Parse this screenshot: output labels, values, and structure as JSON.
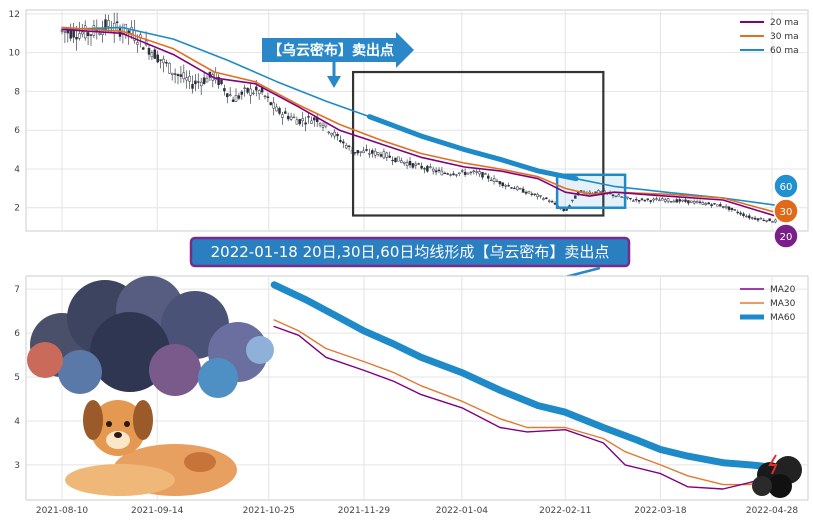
{
  "chart_data": [
    {
      "type": "line",
      "subtype": "candlestick_with_moving_averages",
      "legend_position": "top-right",
      "grid": true,
      "ylim": [
        0.8,
        12.2
      ],
      "yticks": [
        2,
        4,
        6,
        8,
        10,
        12
      ],
      "price_path": [
        {
          "x": "2021-08-10",
          "y": 11.1
        },
        {
          "x": "2021-08-20",
          "y": 11.0
        },
        {
          "x": "2021-08-27",
          "y": 11.4
        },
        {
          "x": "2021-09-05",
          "y": 11.0
        },
        {
          "x": "2021-09-12",
          "y": 10.1
        },
        {
          "x": "2021-09-20",
          "y": 9.0
        },
        {
          "x": "2021-09-27",
          "y": 8.4
        },
        {
          "x": "2021-10-05",
          "y": 8.8
        },
        {
          "x": "2021-10-12",
          "y": 7.6
        },
        {
          "x": "2021-10-17",
          "y": 8.0
        },
        {
          "x": "2021-10-22",
          "y": 8.0
        },
        {
          "x": "2021-10-28",
          "y": 7.0
        },
        {
          "x": "2021-11-05",
          "y": 6.5
        },
        {
          "x": "2021-11-12",
          "y": 6.6
        },
        {
          "x": "2021-11-18",
          "y": 5.8
        },
        {
          "x": "2021-11-25",
          "y": 4.9
        },
        {
          "x": "2021-12-05",
          "y": 4.8
        },
        {
          "x": "2021-12-15",
          "y": 4.3
        },
        {
          "x": "2021-12-28",
          "y": 3.8
        },
        {
          "x": "2022-01-10",
          "y": 3.8
        },
        {
          "x": "2022-01-18",
          "y": 3.3
        },
        {
          "x": "2022-01-28",
          "y": 2.8
        },
        {
          "x": "2022-02-05",
          "y": 2.4
        },
        {
          "x": "2022-02-11",
          "y": 1.8
        },
        {
          "x": "2022-02-16",
          "y": 2.8
        },
        {
          "x": "2022-02-25",
          "y": 2.8
        },
        {
          "x": "2022-03-08",
          "y": 2.4
        },
        {
          "x": "2022-03-20",
          "y": 2.4
        },
        {
          "x": "2022-03-30",
          "y": 2.3
        },
        {
          "x": "2022-04-10",
          "y": 2.1
        },
        {
          "x": "2022-04-20",
          "y": 1.5
        },
        {
          "x": "2022-04-30",
          "y": 1.3
        }
      ],
      "series": [
        {
          "name": "20 ma",
          "color": "#800080",
          "points": [
            {
              "x": "2021-08-10",
              "y": 11.2
            },
            {
              "x": "2021-09-01",
              "y": 11.0
            },
            {
              "x": "2021-09-20",
              "y": 9.9
            },
            {
              "x": "2021-10-05",
              "y": 8.7
            },
            {
              "x": "2021-10-20",
              "y": 8.4
            },
            {
              "x": "2021-11-05",
              "y": 7.2
            },
            {
              "x": "2021-11-20",
              "y": 6.0
            },
            {
              "x": "2021-12-05",
              "y": 5.3
            },
            {
              "x": "2021-12-20",
              "y": 4.6
            },
            {
              "x": "2022-01-05",
              "y": 4.1
            },
            {
              "x": "2022-01-18",
              "y": 3.9
            },
            {
              "x": "2022-02-01",
              "y": 3.5
            },
            {
              "x": "2022-02-11",
              "y": 2.8
            },
            {
              "x": "2022-02-20",
              "y": 2.6
            },
            {
              "x": "2022-03-01",
              "y": 2.8
            },
            {
              "x": "2022-03-20",
              "y": 2.6
            },
            {
              "x": "2022-04-10",
              "y": 2.4
            },
            {
              "x": "2022-05-01",
              "y": 1.5
            }
          ]
        },
        {
          "name": "30 ma",
          "color": "#e07020",
          "points": [
            {
              "x": "2021-08-10",
              "y": 11.3
            },
            {
              "x": "2021-09-01",
              "y": 11.1
            },
            {
              "x": "2021-09-20",
              "y": 10.2
            },
            {
              "x": "2021-10-05",
              "y": 9.0
            },
            {
              "x": "2021-10-20",
              "y": 8.5
            },
            {
              "x": "2021-11-05",
              "y": 7.3
            },
            {
              "x": "2021-11-20",
              "y": 6.3
            },
            {
              "x": "2021-12-05",
              "y": 5.5
            },
            {
              "x": "2021-12-20",
              "y": 4.8
            },
            {
              "x": "2022-01-05",
              "y": 4.3
            },
            {
              "x": "2022-01-18",
              "y": 4.0
            },
            {
              "x": "2022-02-01",
              "y": 3.6
            },
            {
              "x": "2022-02-11",
              "y": 3.0
            },
            {
              "x": "2022-02-20",
              "y": 2.7
            },
            {
              "x": "2022-03-01",
              "y": 2.8
            },
            {
              "x": "2022-03-20",
              "y": 2.7
            },
            {
              "x": "2022-04-10",
              "y": 2.5
            },
            {
              "x": "2022-05-01",
              "y": 1.7
            }
          ]
        },
        {
          "name": "60 ma",
          "color": "#1f8ac8",
          "points": [
            {
              "x": "2021-08-10",
              "y": 11.2
            },
            {
              "x": "2021-09-01",
              "y": 11.3
            },
            {
              "x": "2021-09-20",
              "y": 10.7
            },
            {
              "x": "2021-10-10",
              "y": 9.6
            },
            {
              "x": "2021-10-28",
              "y": 8.5
            },
            {
              "x": "2021-11-15",
              "y": 7.5
            },
            {
              "x": "2021-12-01",
              "y": 6.7
            },
            {
              "x": "2021-12-20",
              "y": 5.7
            },
            {
              "x": "2022-01-05",
              "y": 5.0
            },
            {
              "x": "2022-01-18",
              "y": 4.5
            },
            {
              "x": "2022-02-01",
              "y": 3.9
            },
            {
              "x": "2022-02-15",
              "y": 3.5
            },
            {
              "x": "2022-03-01",
              "y": 3.1
            },
            {
              "x": "2022-03-20",
              "y": 2.8
            },
            {
              "x": "2022-04-10",
              "y": 2.5
            },
            {
              "x": "2022-05-01",
              "y": 2.1
            }
          ]
        }
      ],
      "highlight_boxes": [
        {
          "x_from": "2021-11-25",
          "x_to": "2022-02-25",
          "y_from": 1.6,
          "y_to": 9.0,
          "color": "#333333"
        },
        {
          "x_from": "2022-02-08",
          "x_to": "2022-03-05",
          "y_from": 2.0,
          "y_to": 3.7,
          "color": "#1f8ac8"
        }
      ],
      "annotation_label": "【乌云密布】卖出点",
      "end_badges": [
        {
          "text": "60",
          "color": "#2090d0"
        },
        {
          "text": "30",
          "color": "#e06a1a"
        },
        {
          "text": "20",
          "color": "#7a1f8a"
        }
      ]
    },
    {
      "type": "line",
      "legend_position": "top-right",
      "grid": true,
      "ylim": [
        2.2,
        7.3
      ],
      "yticks": [
        3,
        4,
        5,
        6,
        7
      ],
      "xticks": [
        "2021-08-10",
        "2021-09-14",
        "2021-10-25",
        "2021-11-29",
        "2022-01-04",
        "2022-02-11",
        "2022-03-18",
        "2022-04-28"
      ],
      "series": [
        {
          "name": "MA20",
          "color": "#800080",
          "points": [
            {
              "x": "2021-10-27",
              "y": 6.15
            },
            {
              "x": "2021-11-05",
              "y": 5.95
            },
            {
              "x": "2021-11-15",
              "y": 5.45
            },
            {
              "x": "2021-11-29",
              "y": 5.15
            },
            {
              "x": "2021-12-10",
              "y": 4.9
            },
            {
              "x": "2021-12-20",
              "y": 4.6
            },
            {
              "x": "2022-01-04",
              "y": 4.3
            },
            {
              "x": "2022-01-18",
              "y": 3.85
            },
            {
              "x": "2022-01-28",
              "y": 3.75
            },
            {
              "x": "2022-02-11",
              "y": 3.8
            },
            {
              "x": "2022-02-25",
              "y": 3.5
            },
            {
              "x": "2022-03-05",
              "y": 3.0
            },
            {
              "x": "2022-03-18",
              "y": 2.8
            },
            {
              "x": "2022-03-28",
              "y": 2.5
            },
            {
              "x": "2022-04-10",
              "y": 2.45
            },
            {
              "x": "2022-04-20",
              "y": 2.6
            },
            {
              "x": "2022-04-28",
              "y": 2.75
            }
          ]
        },
        {
          "name": "MA30",
          "color": "#e07a30",
          "points": [
            {
              "x": "2021-10-27",
              "y": 6.3
            },
            {
              "x": "2021-11-05",
              "y": 6.05
            },
            {
              "x": "2021-11-15",
              "y": 5.65
            },
            {
              "x": "2021-11-29",
              "y": 5.35
            },
            {
              "x": "2021-12-10",
              "y": 5.1
            },
            {
              "x": "2021-12-20",
              "y": 4.8
            },
            {
              "x": "2022-01-04",
              "y": 4.45
            },
            {
              "x": "2022-01-18",
              "y": 4.05
            },
            {
              "x": "2022-01-28",
              "y": 3.85
            },
            {
              "x": "2022-02-11",
              "y": 3.85
            },
            {
              "x": "2022-02-25",
              "y": 3.6
            },
            {
              "x": "2022-03-05",
              "y": 3.3
            },
            {
              "x": "2022-03-18",
              "y": 3.0
            },
            {
              "x": "2022-03-28",
              "y": 2.75
            },
            {
              "x": "2022-04-10",
              "y": 2.55
            },
            {
              "x": "2022-04-20",
              "y": 2.55
            },
            {
              "x": "2022-04-28",
              "y": 2.75
            }
          ]
        },
        {
          "name": "MA60",
          "color": "#1f8ac8",
          "points": [
            {
              "x": "2021-10-27",
              "y": 7.1
            },
            {
              "x": "2021-11-08",
              "y": 6.75
            },
            {
              "x": "2021-11-20",
              "y": 6.35
            },
            {
              "x": "2021-11-29",
              "y": 6.05
            },
            {
              "x": "2021-12-10",
              "y": 5.75
            },
            {
              "x": "2021-12-20",
              "y": 5.45
            },
            {
              "x": "2022-01-04",
              "y": 5.1
            },
            {
              "x": "2022-01-18",
              "y": 4.7
            },
            {
              "x": "2022-02-01",
              "y": 4.35
            },
            {
              "x": "2022-02-11",
              "y": 4.2
            },
            {
              "x": "2022-02-25",
              "y": 3.85
            },
            {
              "x": "2022-03-10",
              "y": 3.55
            },
            {
              "x": "2022-03-18",
              "y": 3.35
            },
            {
              "x": "2022-03-28",
              "y": 3.2
            },
            {
              "x": "2022-04-10",
              "y": 3.05
            },
            {
              "x": "2022-04-20",
              "y": 3.0
            },
            {
              "x": "2022-04-28",
              "y": 2.95
            }
          ]
        }
      ],
      "headline": "2022-01-18 20日,30日,60日均线形成【乌云密布】卖出点"
    }
  ]
}
